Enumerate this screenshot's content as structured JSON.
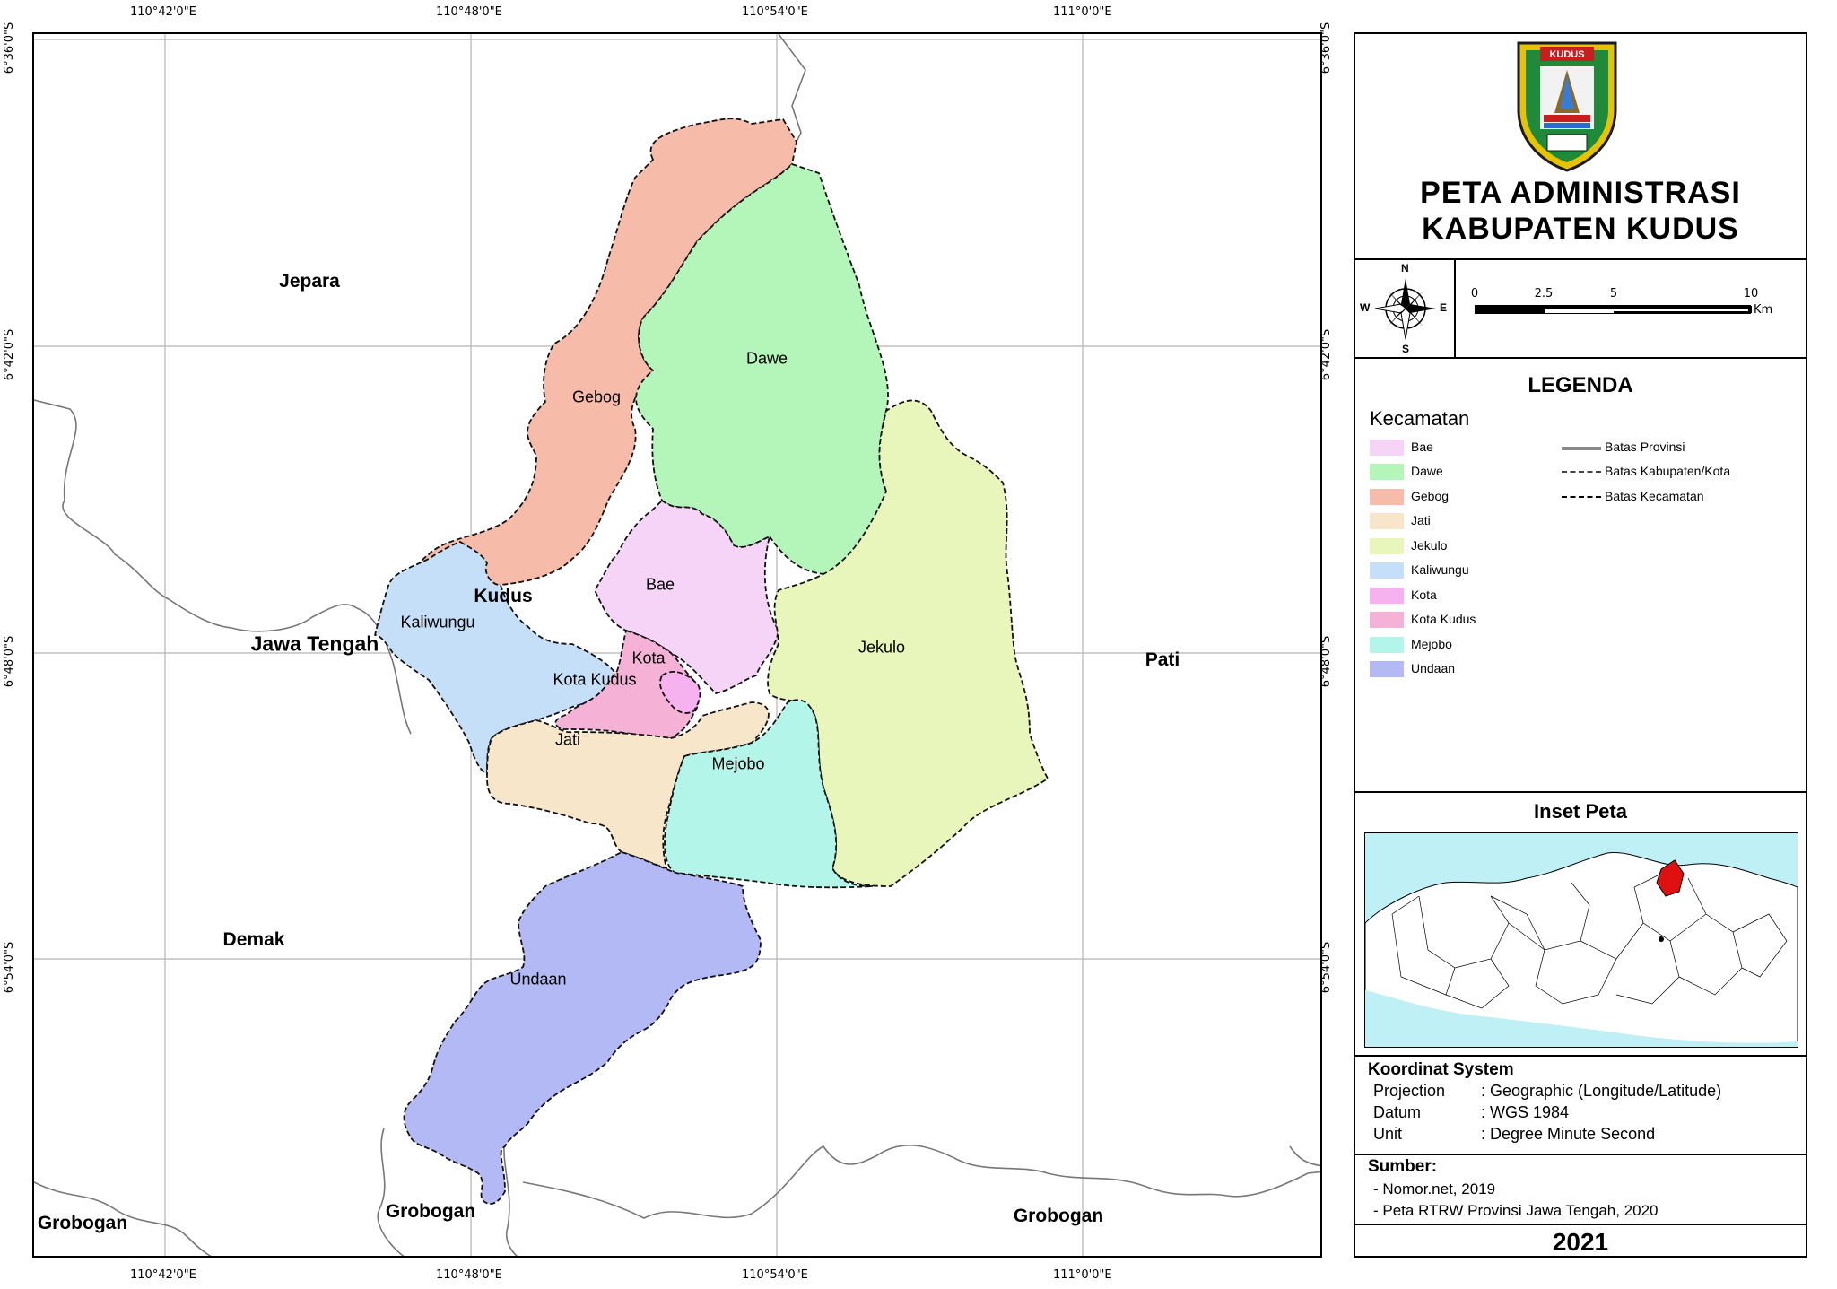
{
  "title": {
    "line1": "PETA ADMINISTRASI",
    "line2": "KABUPATEN KUDUS"
  },
  "logo": {
    "banner_text": "KUDUS"
  },
  "compass": {
    "n": "N",
    "s": "S",
    "e": "E",
    "w": "W"
  },
  "scale": {
    "ticks": [
      "0",
      "2.5",
      "5",
      "10"
    ],
    "unit": "Km"
  },
  "legend": {
    "title": "LEGENDA",
    "subtitle": "Kecamatan",
    "items": [
      {
        "label": "Bae",
        "color": "#f5d4f7"
      },
      {
        "label": "Dawe",
        "color": "#b4f5b9"
      },
      {
        "label": "Gebog",
        "color": "#f6bba9"
      },
      {
        "label": "Jati",
        "color": "#f7e6c9"
      },
      {
        "label": "Jekulo",
        "color": "#e8f6bb"
      },
      {
        "label": "Kaliwungu",
        "color": "#c6dff8"
      },
      {
        "label": "Kota",
        "color": "#f6b2ef"
      },
      {
        "label": "Kota Kudus",
        "color": "#f5b1d6"
      },
      {
        "label": "Mejobo",
        "color": "#b3f6e9"
      },
      {
        "label": "Undaan",
        "color": "#b3b9f5"
      }
    ],
    "lines": [
      {
        "label": "Batas Provinsi"
      },
      {
        "label": "Batas Kabupaten/Kota"
      },
      {
        "label": "Batas Kecamatan"
      }
    ]
  },
  "inset": {
    "title": "Inset Peta"
  },
  "coordinate_system": {
    "heading": "Koordinat System",
    "rows": [
      {
        "key": "Projection",
        "value": ": Geographic (Longitude/Latitude)"
      },
      {
        "key": "Datum",
        "value": ": WGS 1984"
      },
      {
        "key": "Unit",
        "value": ": Degree Minute Second"
      }
    ]
  },
  "sources": {
    "heading": "Sumber:",
    "items": [
      "- Nomor.net, 2019",
      "- Peta RTRW Provinsi Jawa Tengah, 2020"
    ]
  },
  "year": "2021",
  "map": {
    "lon_ticks": [
      "110°42'0\"E",
      "110°48'0\"E",
      "110°54'0\"E",
      "111°0'0\"E"
    ],
    "lat_ticks": [
      "6°36'0\"S",
      "6°42'0\"S",
      "6°48'0\"S",
      "6°54'0\"S"
    ],
    "kecamatan": {
      "gebog": "Gebog",
      "dawe": "Dawe",
      "bae": "Bae",
      "kaliwungu": "Kaliwungu",
      "kota": "Kota",
      "kota_kudus": "Kota Kudus",
      "jekulo": "Jekulo",
      "jati": "Jati",
      "mejobo": "Mejobo",
      "undaan": "Undaan"
    },
    "regions": {
      "jepara": "Jepara",
      "kudus": "Kudus",
      "jawa_tengah": "Jawa Tengah",
      "pati": "Pati",
      "demak": "Demak",
      "grobogan_left": "Grobogan",
      "grobogan_center": "Grobogan",
      "grobogan_right": "Grobogan"
    }
  }
}
